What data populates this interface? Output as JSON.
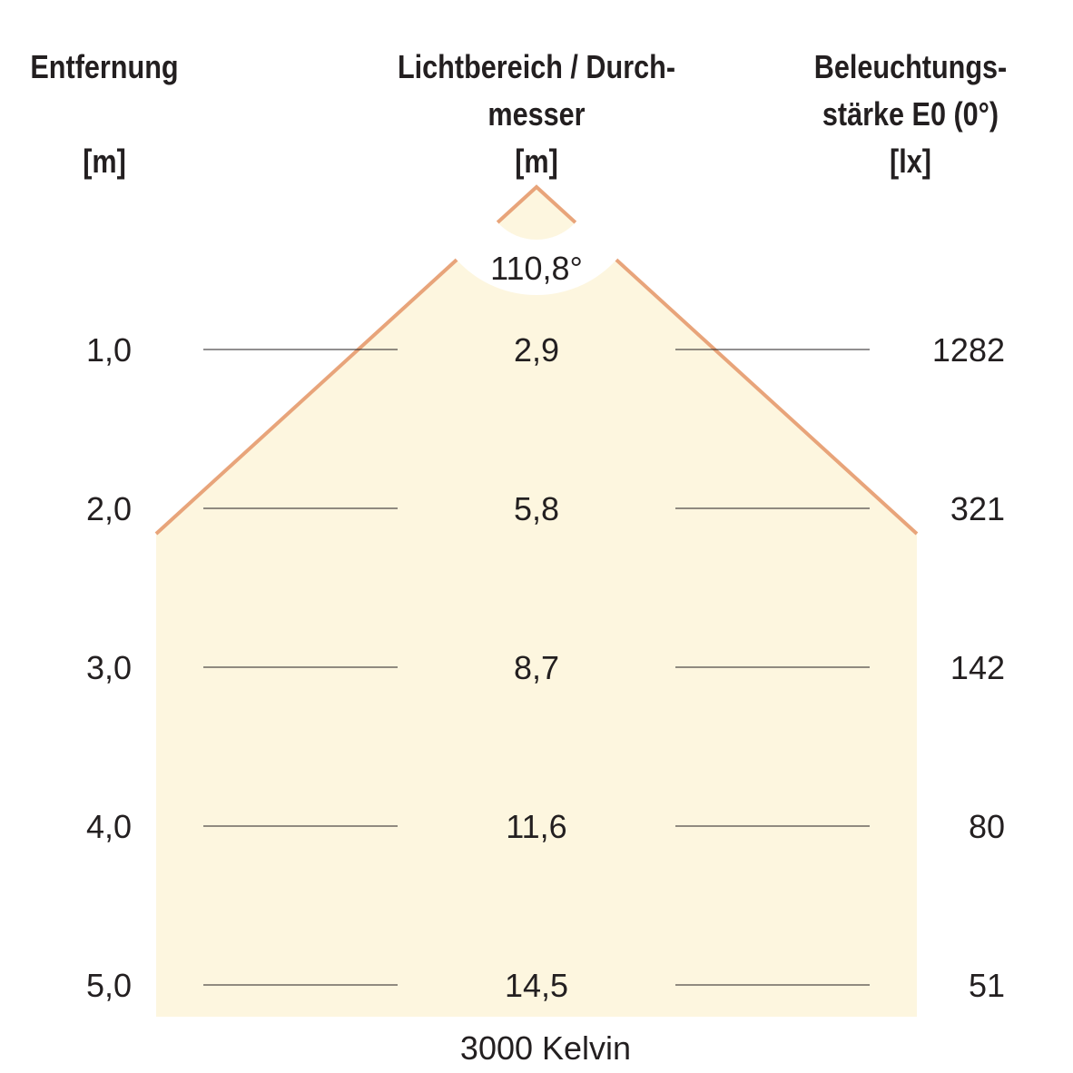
{
  "headers": {
    "distance": {
      "lines": [
        "Entfernung",
        "",
        "[m]"
      ]
    },
    "diameter": {
      "lines": [
        "Lichtbereich / Durch-",
        "messer",
        "[m]"
      ]
    },
    "illuminance": {
      "lines": [
        "Beleuchtungs-",
        "stärke E0 (0°)",
        "[lx]"
      ]
    }
  },
  "beam_angle": "110,8°",
  "rows": [
    {
      "distance": "1,0",
      "diameter": "2,9",
      "illuminance": "1282"
    },
    {
      "distance": "2,0",
      "diameter": "5,8",
      "illuminance": "321"
    },
    {
      "distance": "3,0",
      "diameter": "8,7",
      "illuminance": "142"
    },
    {
      "distance": "4,0",
      "diameter": "11,6",
      "illuminance": "80"
    },
    {
      "distance": "5,0",
      "diameter": "14,5",
      "illuminance": "51"
    }
  ],
  "footer": "3000 Kelvin",
  "colors": {
    "cone_fill": "#fdf6df",
    "cone_edge": "#e8a47a",
    "text": "#231f20"
  }
}
